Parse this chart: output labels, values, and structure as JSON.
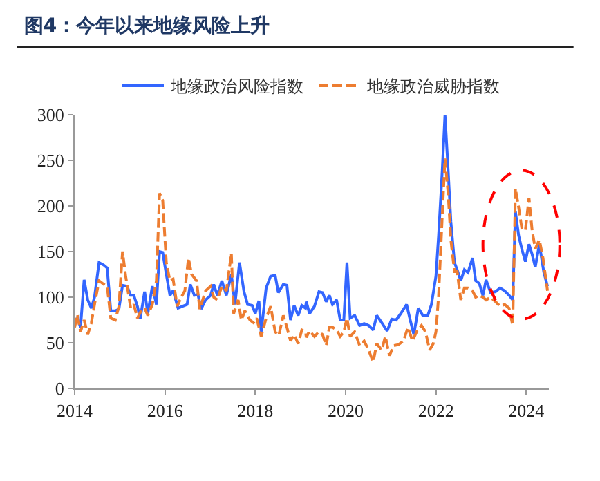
{
  "chart_data": {
    "type": "line",
    "title": "图4：今年以来地缘风险上升",
    "xlim": [
      2014,
      2024.5
    ],
    "xticks": [
      2014,
      2016,
      2018,
      2020,
      2022,
      2024
    ],
    "ylim": [
      0,
      300
    ],
    "yticks": [
      0,
      50,
      100,
      150,
      200,
      250,
      300
    ],
    "grid": false,
    "legend": "top",
    "marker": "none",
    "series": [
      {
        "name": "地缘政治风险指数",
        "color": "#3366ff",
        "line_style": "solid",
        "x": [
          2014,
          2014.06,
          2014.13,
          2014.21,
          2014.29,
          2014.37,
          2014.44,
          2014.54,
          2014.65,
          2014.72,
          2014.8,
          2014.9,
          2014.98,
          2015.06,
          2015.16,
          2015.24,
          2015.31,
          2015.39,
          2015.45,
          2015.55,
          2015.62,
          2015.72,
          2015.81,
          2015.88,
          2015.95,
          2016.03,
          2016.11,
          2016.18,
          2016.29,
          2016.39,
          2016.49,
          2016.56,
          2016.65,
          2016.73,
          2016.8,
          2016.9,
          2017.01,
          2017.08,
          2017.16,
          2017.26,
          2017.36,
          2017.47,
          2017.55,
          2017.65,
          2017.75,
          2017.83,
          2017.93,
          2018,
          2018.08,
          2018.13,
          2018.24,
          2018.34,
          2018.44,
          2018.51,
          2018.62,
          2018.7,
          2018.78,
          2018.86,
          2018.95,
          2019.03,
          2019.11,
          2019.13,
          2019.2,
          2019.31,
          2019.41,
          2019.49,
          2019.57,
          2019.64,
          2019.71,
          2019.8,
          2019.88,
          2019.96,
          2020.03,
          2020.1,
          2020.2,
          2020.31,
          2020.41,
          2020.51,
          2020.61,
          2020.69,
          2020.8,
          2020.92,
          2021.02,
          2021.12,
          2021.22,
          2021.35,
          2021.43,
          2021.51,
          2021.61,
          2021.71,
          2021.82,
          2021.9,
          2022,
          2022.06,
          2022.14,
          2022.2,
          2022.27,
          2022.33,
          2022.41,
          2022.47,
          2022.55,
          2022.63,
          2022.71,
          2022.81,
          2022.88,
          2022.96,
          2023.04,
          2023.11,
          2023.21,
          2023.32,
          2023.42,
          2023.52,
          2023.62,
          2023.7,
          2023.76,
          2023.83,
          2023.9,
          2023.98,
          2024.06,
          2024.13,
          2024.2,
          2024.29,
          2024.39,
          2024.47
        ],
        "values": [
          72,
          77,
          67,
          119,
          97,
          88,
          100,
          138,
          135,
          132,
          85,
          85,
          87,
          113,
          112,
          102,
          102,
          90,
          76,
          106,
          82,
          112,
          92,
          150,
          149,
          125,
          102,
          107,
          88,
          90,
          92,
          114,
          102,
          103,
          87,
          97,
          102,
          114,
          102,
          118,
          102,
          125,
          92,
          138,
          106,
          92,
          91,
          82,
          96,
          62,
          110,
          123,
          124,
          105,
          114,
          113,
          75,
          91,
          80,
          91,
          88,
          95,
          82,
          90,
          106,
          105,
          95,
          102,
          92,
          97,
          75,
          75,
          138,
          77,
          80,
          69,
          71,
          69,
          64,
          80,
          72,
          63,
          76,
          75,
          82,
          92,
          75,
          59,
          88,
          80,
          80,
          92,
          123,
          168,
          239,
          300,
          239,
          183,
          138,
          130,
          118,
          130,
          127,
          143,
          118,
          115,
          102,
          119,
          105,
          106,
          110,
          107,
          102,
          97,
          194,
          168,
          153,
          139,
          158,
          147,
          133,
          158,
          127,
          112
        ]
      },
      {
        "name": "地缘政治威胁指数",
        "color": "#ed7d31",
        "line_style": "dashed",
        "x": [
          2014,
          2014.06,
          2014.13,
          2014.21,
          2014.29,
          2014.37,
          2014.44,
          2014.54,
          2014.65,
          2014.72,
          2014.8,
          2014.9,
          2014.98,
          2015.06,
          2015.13,
          2015.24,
          2015.31,
          2015.39,
          2015.47,
          2015.55,
          2015.62,
          2015.72,
          2015.81,
          2015.88,
          2015.95,
          2016.03,
          2016.11,
          2016.18,
          2016.27,
          2016.36,
          2016.44,
          2016.52,
          2016.59,
          2016.7,
          2016.77,
          2016.9,
          2017.01,
          2017.08,
          2017.16,
          2017.26,
          2017.36,
          2017.47,
          2017.52,
          2017.62,
          2017.69,
          2017.77,
          2017.88,
          2017.96,
          2018.03,
          2018.13,
          2018.24,
          2018.34,
          2018.44,
          2018.52,
          2018.62,
          2018.7,
          2018.78,
          2018.86,
          2018.95,
          2019.03,
          2019.11,
          2019.13,
          2019.2,
          2019.31,
          2019.41,
          2019.49,
          2019.57,
          2019.64,
          2019.71,
          2019.8,
          2019.88,
          2019.96,
          2020.03,
          2020.1,
          2020.2,
          2020.31,
          2020.41,
          2020.51,
          2020.61,
          2020.69,
          2020.8,
          2020.88,
          2020.97,
          2021.07,
          2021.17,
          2021.28,
          2021.38,
          2021.48,
          2021.58,
          2021.68,
          2021.77,
          2021.86,
          2021.94,
          2022,
          2022.06,
          2022.14,
          2022.2,
          2022.27,
          2022.33,
          2022.41,
          2022.47,
          2022.55,
          2022.63,
          2022.71,
          2022.81,
          2022.88,
          2022.96,
          2023.04,
          2023.11,
          2023.21,
          2023.32,
          2023.42,
          2023.52,
          2023.62,
          2023.7,
          2023.76,
          2023.83,
          2023.9,
          2023.98,
          2024.06,
          2024.13,
          2024.2,
          2024.29,
          2024.37,
          2024.47
        ],
        "values": [
          67,
          81,
          62,
          75,
          59,
          72,
          92,
          118,
          114,
          112,
          77,
          75,
          90,
          150,
          123,
          88,
          92,
          77,
          85,
          88,
          80,
          92,
          118,
          214,
          206,
          138,
          118,
          120,
          90,
          100,
          107,
          143,
          125,
          118,
          87,
          107,
          112,
          100,
          97,
          112,
          107,
          148,
          82,
          97,
          75,
          85,
          75,
          72,
          77,
          57,
          77,
          90,
          62,
          58,
          80,
          67,
          52,
          59,
          49,
          64,
          62,
          56,
          63,
          57,
          62,
          59,
          47,
          67,
          67,
          64,
          57,
          62,
          77,
          57,
          62,
          47,
          52,
          42,
          29,
          49,
          42,
          57,
          36,
          47,
          48,
          52,
          67,
          52,
          63,
          69,
          62,
          42,
          49,
          62,
          102,
          189,
          252,
          214,
          163,
          128,
          128,
          97,
          110,
          110,
          107,
          100,
          102,
          100,
          97,
          100,
          95,
          90,
          92,
          88,
          69,
          219,
          199,
          176,
          173,
          209,
          173,
          153,
          163,
          143,
          107
        ]
      }
    ]
  }
}
